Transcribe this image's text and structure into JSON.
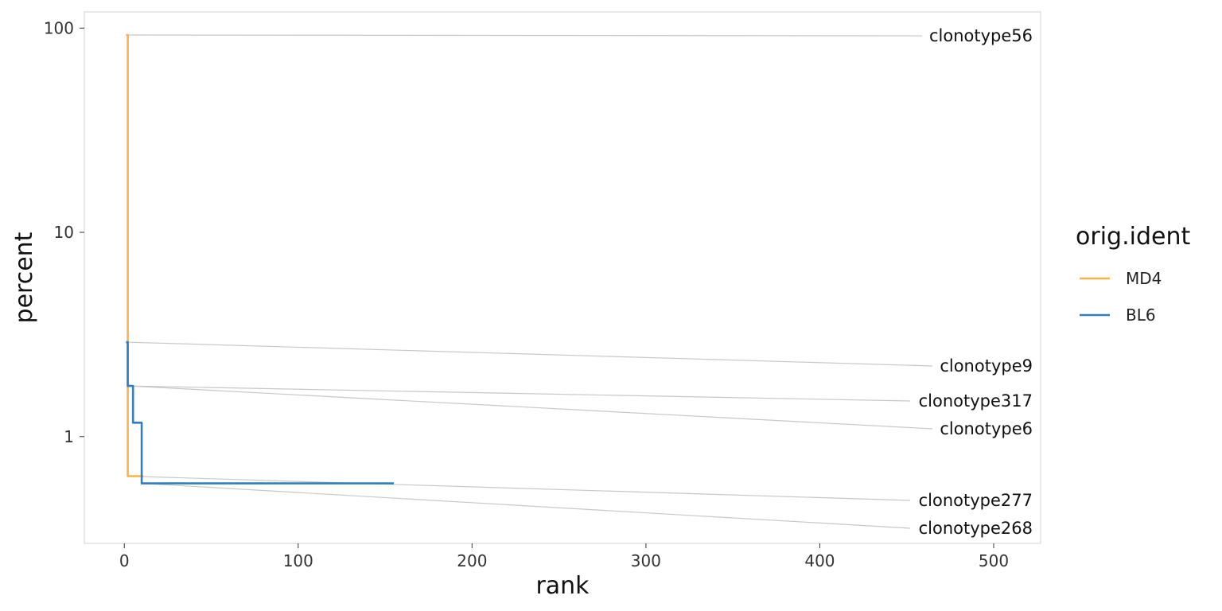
{
  "chart_data": {
    "type": "line",
    "xlabel": "rank",
    "ylabel": "percent",
    "xlim": [
      -23,
      527
    ],
    "ylim": [
      0.3,
      120
    ],
    "yscale": "log",
    "x_ticks": [
      {
        "value": 0,
        "label": "0"
      },
      {
        "value": 100,
        "label": "100"
      },
      {
        "value": 200,
        "label": "200"
      },
      {
        "value": 300,
        "label": "300"
      },
      {
        "value": 400,
        "label": "400"
      },
      {
        "value": 500,
        "label": "500"
      }
    ],
    "y_ticks": [
      {
        "value": 1,
        "label": "1"
      },
      {
        "value": 10,
        "label": "10"
      },
      {
        "value": 100,
        "label": "100"
      }
    ],
    "grid": false,
    "legend": {
      "title": "orig.ident",
      "position": "right"
    },
    "series": [
      {
        "name": "MD4",
        "color": "#FDB347",
        "x": [
          1,
          2,
          3,
          4,
          5,
          6,
          7,
          8,
          9,
          10,
          11
        ],
        "y": [
          92.5,
          0.64,
          0.64,
          0.64,
          0.64,
          0.64,
          0.64,
          0.64,
          0.64,
          0.64,
          0.64
        ]
      },
      {
        "name": "BL6",
        "color": "#2F7EC0",
        "x": [
          1,
          2,
          3,
          4,
          5,
          6,
          7,
          8,
          9,
          10,
          11,
          155
        ],
        "y": [
          2.9,
          1.77,
          1.77,
          1.77,
          1.17,
          1.17,
          1.17,
          1.17,
          1.17,
          0.59,
          0.59,
          0.59
        ]
      }
    ],
    "annotations": [
      {
        "label": "clonotype56",
        "x": 1,
        "y": 92.5
      },
      {
        "label": "clonotype9",
        "x": 1,
        "y": 2.9
      },
      {
        "label": "clonotype317",
        "x": 2,
        "y": 1.77
      },
      {
        "label": "clonotype6",
        "x": 3,
        "y": 1.77
      },
      {
        "label": "clonotype277",
        "x": 2,
        "y": 0.64
      },
      {
        "label": "clonotype268",
        "x": 10,
        "y": 0.59
      }
    ]
  }
}
